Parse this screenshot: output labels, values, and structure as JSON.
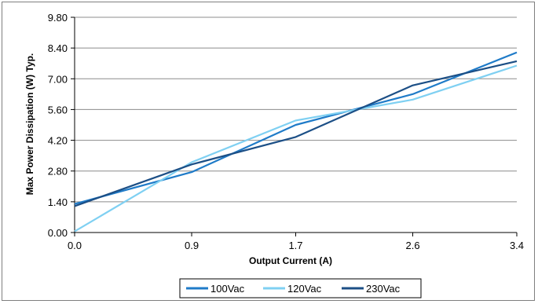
{
  "chart_data": {
    "type": "line",
    "title": "",
    "xlabel": "Output Current (A)",
    "ylabel": "Max  Power Dissipation  (W) Typ.",
    "x": [
      0.0,
      0.9,
      1.7,
      2.6,
      3.4
    ],
    "x_tick_labels": [
      "0.0",
      "0.9",
      "1.7",
      "2.6",
      "3.4"
    ],
    "y_ticks": [
      0.0,
      1.4,
      2.8,
      4.2,
      5.6,
      7.0,
      8.4,
      9.8
    ],
    "y_tick_labels": [
      "0.00",
      "1.40",
      "2.80",
      "4.20",
      "5.60",
      "7.00",
      "8.40",
      "9.80"
    ],
    "ylim": [
      0,
      9.8
    ],
    "grid": "horizontal",
    "legend_position": "bottom",
    "series": [
      {
        "name": "100Vac",
        "color": "#1f7bc8",
        "values": [
          1.3,
          2.75,
          4.9,
          6.3,
          8.2
        ]
      },
      {
        "name": "120Vac",
        "color": "#7fd0f2",
        "values": [
          0.05,
          3.2,
          5.1,
          6.05,
          7.6
        ]
      },
      {
        "name": "230Vac",
        "color": "#1c4f86",
        "values": [
          1.2,
          3.1,
          4.35,
          6.7,
          7.8
        ]
      }
    ]
  }
}
